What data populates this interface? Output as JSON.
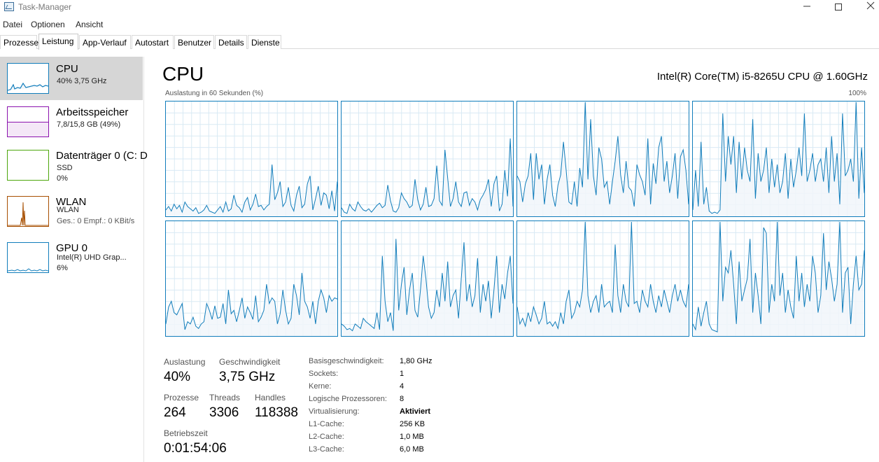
{
  "window": {
    "title": "Task-Manager"
  },
  "menu": [
    "Datei",
    "Optionen",
    "Ansicht"
  ],
  "tabs": [
    "Prozesse",
    "Leistung",
    "App-Verlauf",
    "Autostart",
    "Benutzer",
    "Details",
    "Dienste"
  ],
  "active_tab": "Leistung",
  "sidebar": {
    "items": [
      {
        "title": "CPU",
        "line1": "40% 3,75 GHz",
        "line2": "",
        "color": "#117dbb"
      },
      {
        "title": "Arbeitsspeicher",
        "line1": "7,8/15,8 GB (49%)",
        "line2": "",
        "color": "#8b12ae"
      },
      {
        "title": "Datenträger 0 (C: D",
        "line1": "SSD",
        "line2": "0%",
        "color": "#4da60c"
      },
      {
        "title": "WLAN",
        "line1": "WLAN",
        "line2": "Ges.: 0  Empf.: 0 KBit/s",
        "color": "#a74f01"
      },
      {
        "title": "GPU 0",
        "line1": "Intel(R) UHD Grap...",
        "line2": "6%",
        "color": "#117dbb"
      }
    ]
  },
  "main": {
    "title": "CPU",
    "model": "Intel(R) Core(TM) i5-8265U CPU @ 1.60GHz",
    "graph_caption": "Auslastung in 60 Sekunden (%)",
    "graph_max": "100%",
    "line_color": "#117dbb",
    "fill_color": "#f1f6fa"
  },
  "stats": {
    "usage_label": "Auslastung",
    "usage_value": "40%",
    "speed_label": "Geschwindigkeit",
    "speed_value": "3,75 GHz",
    "processes_label": "Prozesse",
    "processes_value": "264",
    "threads_label": "Threads",
    "threads_value": "3306",
    "handles_label": "Handles",
    "handles_value": "118388",
    "uptime_label": "Betriebszeit",
    "uptime_value": "0:01:54:06"
  },
  "specs": [
    {
      "label": "Basisgeschwindigkeit:",
      "value": "1,80 GHz"
    },
    {
      "label": "Sockets:",
      "value": "1"
    },
    {
      "label": "Kerne:",
      "value": "4"
    },
    {
      "label": "Logische Prozessoren:",
      "value": "8"
    },
    {
      "label": "Virtualisierung:",
      "value": "Aktiviert"
    },
    {
      "label": "L1-Cache:",
      "value": "256 KB"
    },
    {
      "label": "L2-Cache:",
      "value": "1,0 MB"
    },
    {
      "label": "L3-Cache:",
      "value": "6,0 MB"
    }
  ],
  "chart_data": {
    "type": "line",
    "title": "Auslastung in 60 Sekunden (%)",
    "ylim": [
      0,
      100
    ],
    "series": [
      {
        "values": [
          5,
          8,
          4,
          10,
          6,
          9,
          3,
          12,
          8,
          6,
          4,
          7,
          2,
          3,
          5,
          9,
          4,
          3,
          2,
          5,
          8,
          3,
          12,
          4,
          6,
          18,
          9,
          7,
          3,
          12,
          16,
          5,
          10,
          19,
          8,
          9,
          5,
          8,
          10,
          45,
          14,
          20,
          30,
          8,
          12,
          25,
          9,
          4,
          18,
          26,
          7,
          10,
          28,
          35,
          5,
          15,
          26,
          9,
          20,
          18,
          6,
          22,
          4,
          30
        ]
      },
      {
        "values": [
          7,
          3,
          2,
          10,
          6,
          4,
          12,
          8,
          5,
          4,
          6,
          3,
          6,
          9,
          11,
          7,
          9,
          27,
          13,
          4,
          3,
          7,
          20,
          15,
          12,
          7,
          9,
          32,
          14,
          5,
          10,
          25,
          8,
          9,
          15,
          44,
          13,
          9,
          58,
          33,
          8,
          15,
          30,
          12,
          8,
          20,
          21,
          9,
          15,
          12,
          5,
          14,
          18,
          23,
          32,
          8,
          28,
          35,
          4,
          10,
          40,
          17,
          68,
          8
        ]
      },
      {
        "values": [
          35,
          30,
          12,
          28,
          35,
          55,
          14,
          55,
          32,
          45,
          10,
          32,
          45,
          18,
          8,
          27,
          36,
          65,
          40,
          12,
          10,
          30,
          8,
          42,
          25,
          100,
          32,
          85,
          35,
          18,
          60,
          50,
          25,
          30,
          10,
          30,
          48,
          70,
          36,
          20,
          48,
          25,
          22,
          8,
          45,
          36,
          30,
          18,
          68,
          10,
          46,
          28,
          60,
          70,
          30,
          48,
          20,
          35,
          55,
          15,
          52,
          58,
          40,
          10
        ]
      },
      {
        "values": [
          5,
          40,
          8,
          65,
          10,
          25,
          4,
          2,
          3,
          2,
          5,
          90,
          30,
          70,
          45,
          70,
          20,
          65,
          32,
          60,
          40,
          30,
          85,
          15,
          55,
          30,
          40,
          60,
          20,
          50,
          25,
          45,
          20,
          30,
          55,
          15,
          50,
          25,
          40,
          60,
          35,
          90,
          30,
          40,
          55,
          30,
          45,
          50,
          30,
          60,
          20,
          70,
          30,
          55,
          10,
          90,
          35,
          40,
          50,
          30,
          100,
          15,
          60,
          20
        ]
      },
      {
        "values": [
          10,
          25,
          30,
          20,
          18,
          23,
          28,
          5,
          12,
          10,
          16,
          8,
          6,
          10,
          12,
          28,
          22,
          14,
          26,
          15,
          16,
          28,
          10,
          40,
          19,
          22,
          12,
          22,
          33,
          15,
          25,
          20,
          14,
          35,
          12,
          16,
          22,
          45,
          28,
          33,
          30,
          10,
          19,
          40,
          22,
          10,
          15,
          45,
          35,
          18,
          55,
          30,
          25,
          15,
          30,
          10,
          30,
          40,
          33,
          20,
          35,
          30,
          33,
          32
        ]
      },
      {
        "values": [
          10,
          8,
          5,
          6,
          4,
          10,
          8,
          6,
          15,
          12,
          10,
          8,
          6,
          20,
          5,
          70,
          30,
          12,
          20,
          4,
          85,
          22,
          45,
          60,
          18,
          40,
          55,
          22,
          16,
          40,
          70,
          50,
          25,
          15,
          20,
          40,
          25,
          55,
          30,
          65,
          25,
          35,
          40,
          15,
          50,
          82,
          30,
          45,
          25,
          35,
          68,
          20,
          45,
          30,
          48,
          15,
          40,
          70,
          20,
          45,
          32,
          55,
          70,
          28
        ]
      },
      {
        "values": [
          25,
          10,
          15,
          8,
          20,
          12,
          25,
          18,
          10,
          15,
          30,
          10,
          12,
          8,
          12,
          6,
          20,
          10,
          30,
          40,
          15,
          20,
          30,
          25,
          40,
          100,
          35,
          20,
          30,
          35,
          20,
          45,
          25,
          28,
          30,
          20,
          80,
          35,
          20,
          45,
          30,
          25,
          100,
          28,
          30,
          20,
          40,
          30,
          25,
          45,
          30,
          20,
          35,
          25,
          40,
          30,
          20,
          35,
          45,
          30,
          40,
          30,
          25,
          45
        ]
      },
      {
        "values": [
          10,
          5,
          25,
          8,
          20,
          30,
          10,
          5,
          4,
          3,
          100,
          30,
          60,
          55,
          75,
          45,
          10,
          65,
          30,
          40,
          50,
          85,
          20,
          55,
          35,
          10,
          95,
          90,
          20,
          45,
          30,
          100,
          35,
          55,
          20,
          40,
          25,
          15,
          70,
          30,
          55,
          25,
          45,
          30,
          70,
          55,
          20,
          35,
          90,
          40,
          65,
          50,
          30,
          45,
          100,
          20,
          55,
          60,
          10,
          45,
          70,
          40,
          45,
          75
        ]
      }
    ]
  }
}
